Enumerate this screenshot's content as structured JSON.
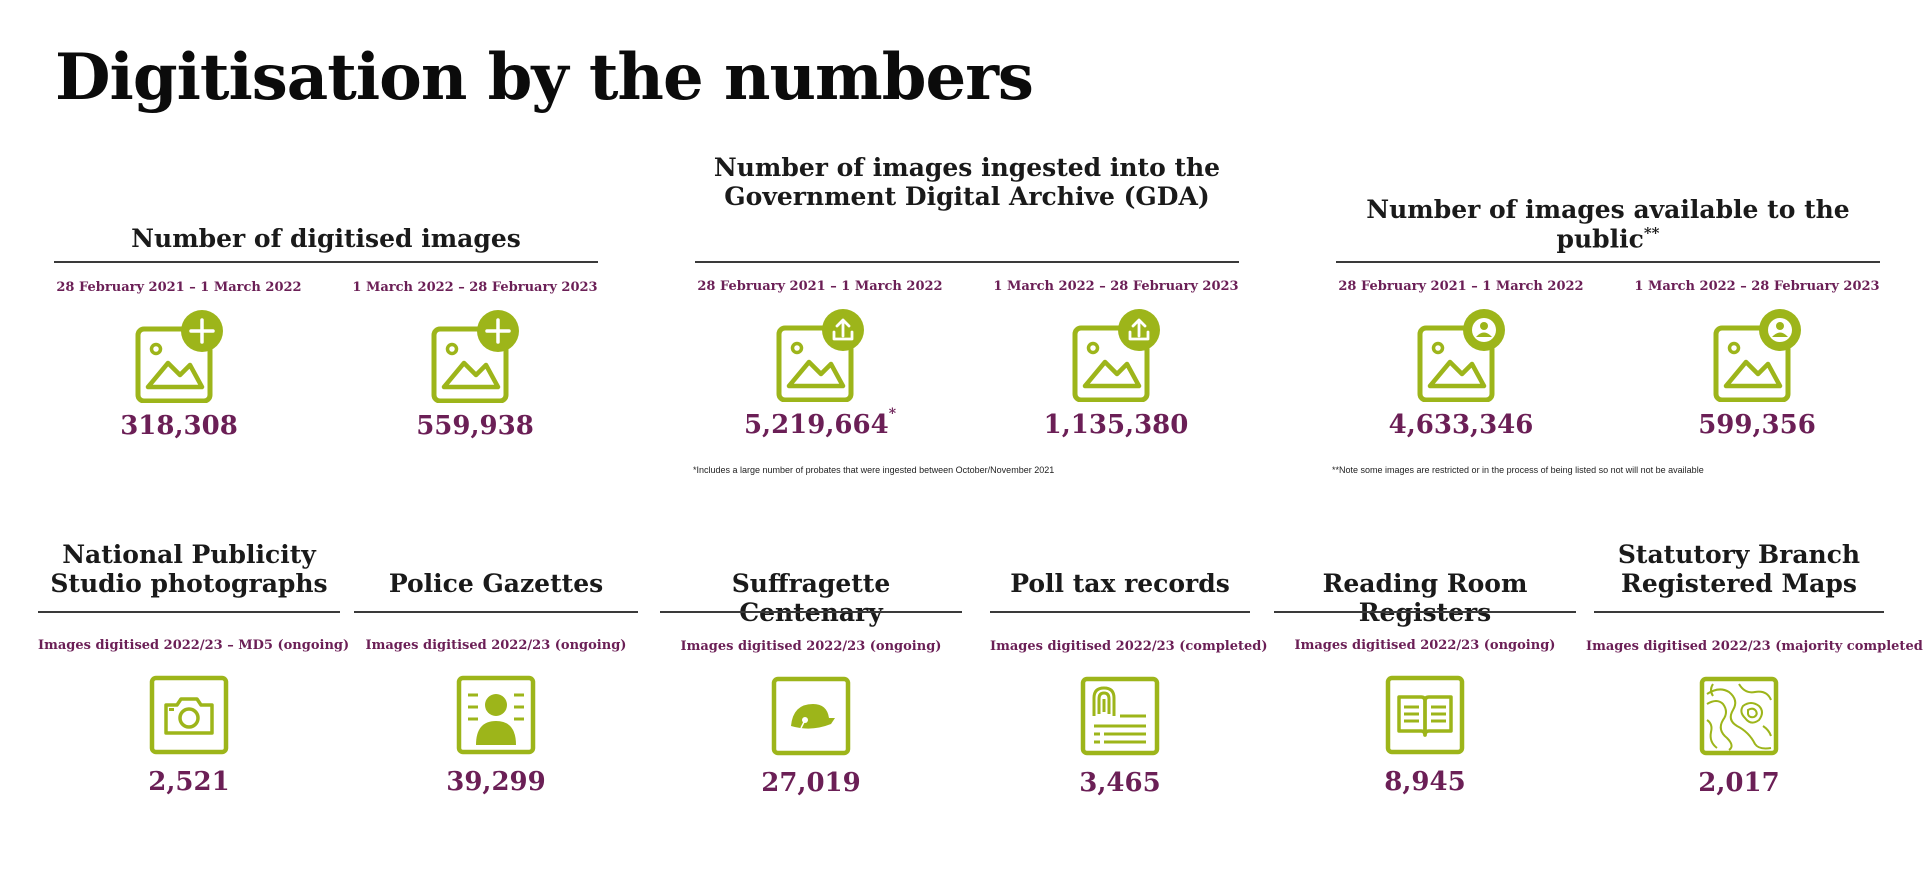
{
  "page": {
    "title": "Digitisation by the numbers"
  },
  "colors": {
    "accent_green": "#9db51a",
    "value_purple": "#6b1f56",
    "text_dark": "#1a1a1a"
  },
  "top_sections": [
    {
      "title": "Number of digitised images",
      "badge_icon": "plus-icon",
      "columns": [
        {
          "period": "28 February 2021 – 1 March 2022",
          "value": "318,308",
          "mark": ""
        },
        {
          "period": "1 March 2022 – 28 February 2023",
          "value": "559,938",
          "mark": ""
        }
      ],
      "note": ""
    },
    {
      "title_line1": "Number of images ingested into the",
      "title_line2": "Government Digital Archive (GDA)",
      "badge_icon": "upload-icon",
      "columns": [
        {
          "period": "28 February 2021 – 1 March 2022",
          "value": "5,219,664",
          "mark": "*"
        },
        {
          "period": "1 March 2022 – 28 February 2023",
          "value": "1,135,380",
          "mark": ""
        }
      ],
      "note": "*Includes a large number of probates that were ingested between October/November 2021"
    },
    {
      "title": "Number of images available to the public",
      "title_mark": "**",
      "badge_icon": "user-icon",
      "columns": [
        {
          "period": "28 February 2021 – 1 March 2022",
          "value": "4,633,346",
          "mark": ""
        },
        {
          "period": "1 March 2022 – 28 February 2023",
          "value": "599,356",
          "mark": ""
        }
      ],
      "note": "**Note some images are restricted or in the process of being listed so not will not be available"
    }
  ],
  "projects": [
    {
      "title_line1": "National Publicity",
      "title_line2": "Studio photographs",
      "period": "Images digitised 2022/23 – MD5 (ongoing)",
      "value": "2,521",
      "icon": "camera-icon"
    },
    {
      "title_line1": "Police Gazettes",
      "title_line2": "",
      "period": "Images digitised 2022/23 (ongoing)",
      "value": "39,299",
      "icon": "mugshot-icon"
    },
    {
      "title_line1": "Suffragette Centenary",
      "title_line2": "",
      "period": "Images digitised 2022/23 (ongoing)",
      "value": "27,019",
      "icon": "hat-icon"
    },
    {
      "title_line1": "Poll tax records",
      "title_line2": "",
      "period": "Images digitised 2022/23 (completed)",
      "value": "3,465",
      "icon": "fingerprint-document-icon"
    },
    {
      "title_line1": "Reading Room Registers",
      "title_line2": "",
      "period": "Images digitised 2022/23 (ongoing)",
      "value": "8,945",
      "icon": "open-book-icon"
    },
    {
      "title_line1": "Statutory Branch",
      "title_line2": "Registered Maps",
      "period": "Images digitised 2022/23 (majority completed)",
      "value": "2,017",
      "icon": "topographic-map-icon"
    }
  ]
}
